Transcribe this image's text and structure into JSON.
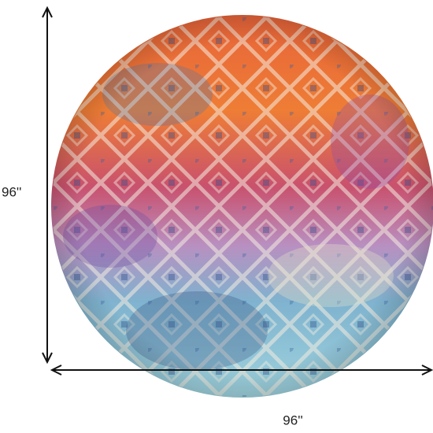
{
  "dimensions": {
    "height": "96''",
    "width": "96''"
  }
}
